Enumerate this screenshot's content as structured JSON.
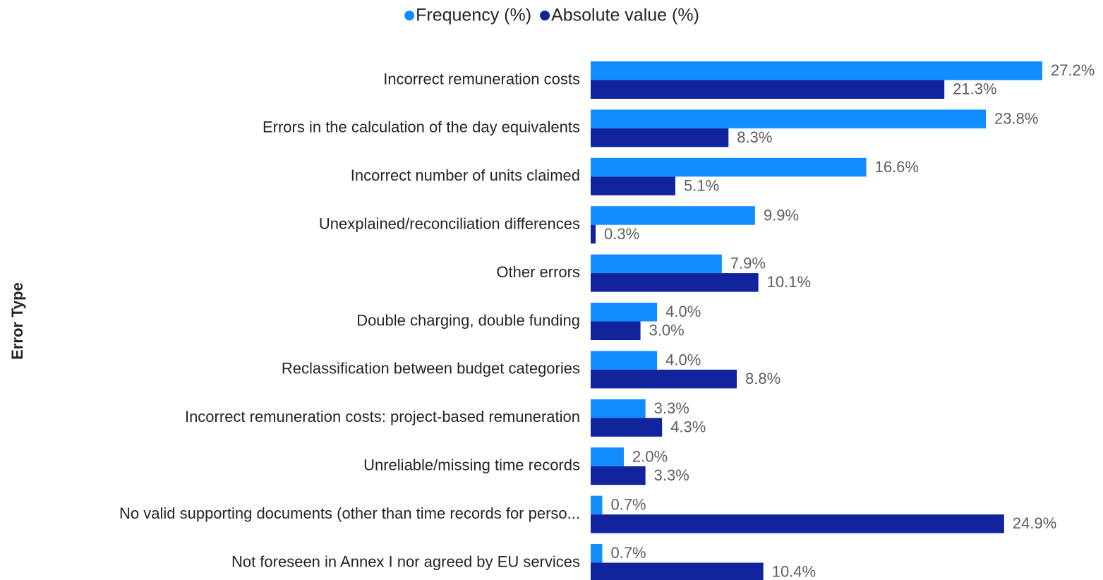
{
  "chart_data": {
    "type": "bar",
    "orientation": "horizontal",
    "y_label": "Error Type",
    "categories": [
      "Incorrect remuneration costs",
      "Errors in the calculation of the day equivalents",
      "Incorrect number of units claimed",
      "Unexplained/reconciliation differences",
      "Other errors",
      "Double charging, double funding",
      "Reclassification between budget categories",
      "Incorrect remuneration costs: project-based remuneration",
      "Unreliable/missing time records",
      "No valid supporting documents (other than time records for perso...",
      "Not foreseen in Annex I nor agreed by EU services"
    ],
    "series": [
      {
        "name": "Frequency (%)",
        "color": "#118dff",
        "values": [
          27.2,
          23.8,
          16.6,
          9.9,
          7.9,
          4.0,
          4.0,
          3.3,
          2.0,
          0.7,
          0.7
        ],
        "value_labels": [
          "27.2%",
          "23.8%",
          "16.6%",
          "9.9%",
          "7.9%",
          "4.0%",
          "4.0%",
          "3.3%",
          "2.0%",
          "0.7%",
          "0.7%"
        ]
      },
      {
        "name": "Absolute value (%)",
        "color": "#12239e",
        "values": [
          21.3,
          8.3,
          5.1,
          0.3,
          10.1,
          3.0,
          8.8,
          4.3,
          3.3,
          24.9,
          10.4
        ],
        "value_labels": [
          "21.3%",
          "8.3%",
          "5.1%",
          "0.3%",
          "10.1%",
          "3.0%",
          "8.8%",
          "4.3%",
          "3.3%",
          "24.9%",
          "10.4%"
        ]
      }
    ],
    "legend": "top"
  }
}
